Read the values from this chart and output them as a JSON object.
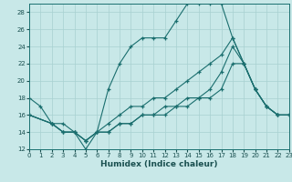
{
  "xlabel": "Humidex (Indice chaleur)",
  "bg_color": "#c8e8e8",
  "grid_color": "#a8d0d0",
  "line_color": "#1a6e6e",
  "xlim": [
    0,
    23
  ],
  "ylim": [
    12,
    29
  ],
  "xticks": [
    0,
    1,
    2,
    3,
    4,
    5,
    6,
    7,
    8,
    9,
    10,
    11,
    12,
    13,
    14,
    15,
    16,
    17,
    18,
    19,
    20,
    21,
    22,
    23
  ],
  "yticks": [
    12,
    14,
    16,
    18,
    20,
    22,
    24,
    26,
    28
  ],
  "curve1_x": [
    0,
    1,
    2,
    3,
    4,
    5,
    6,
    7,
    8,
    9,
    10,
    11,
    12,
    13,
    14,
    15,
    16,
    17,
    18,
    19,
    20,
    21,
    22,
    23
  ],
  "curve1_y": [
    18,
    17,
    15,
    14,
    14,
    12,
    14,
    19,
    22,
    24,
    25,
    25,
    25,
    27,
    29,
    29,
    29,
    29,
    25,
    22,
    19,
    17,
    16,
    16
  ],
  "curve2_x": [
    0,
    2,
    3,
    4,
    5,
    6,
    7,
    8,
    9,
    10,
    11,
    12,
    13,
    14,
    15,
    16,
    17,
    18,
    19,
    20,
    21,
    22,
    23
  ],
  "curve2_y": [
    16,
    15,
    15,
    14,
    13,
    14,
    15,
    16,
    17,
    17,
    18,
    18,
    19,
    20,
    21,
    22,
    23,
    25,
    22,
    19,
    17,
    16,
    16
  ],
  "curve3_x": [
    0,
    2,
    3,
    4,
    5,
    6,
    7,
    8,
    9,
    10,
    11,
    12,
    13,
    14,
    15,
    16,
    17,
    18,
    19,
    20,
    21,
    22,
    23
  ],
  "curve3_y": [
    16,
    15,
    14,
    14,
    13,
    14,
    14,
    15,
    15,
    16,
    16,
    17,
    17,
    18,
    18,
    19,
    21,
    24,
    22,
    19,
    17,
    16,
    16
  ],
  "curve4_x": [
    0,
    2,
    3,
    4,
    5,
    6,
    7,
    8,
    9,
    10,
    11,
    12,
    13,
    14,
    15,
    16,
    17,
    18,
    19,
    20,
    21,
    22,
    23
  ],
  "curve4_y": [
    16,
    15,
    14,
    14,
    13,
    14,
    14,
    15,
    15,
    16,
    16,
    16,
    17,
    17,
    18,
    18,
    19,
    22,
    22,
    19,
    17,
    16,
    16
  ]
}
